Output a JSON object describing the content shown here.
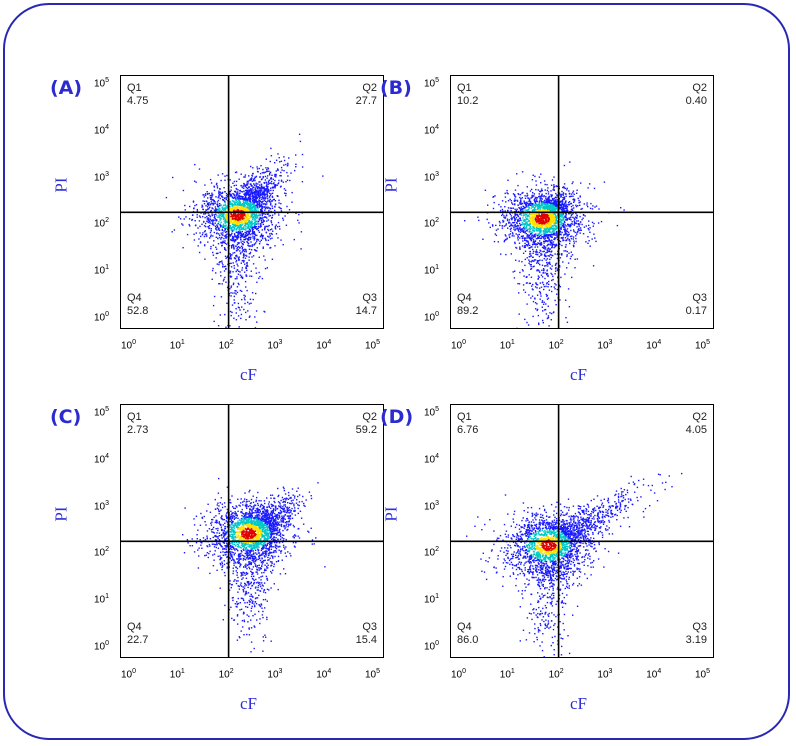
{
  "chart_data": [
    {
      "type": "scatter",
      "panel_label": "(A)",
      "xlabel": "cF",
      "ylabel": "PI",
      "scale": "log",
      "xlim": [
        1,
        100000
      ],
      "ylim": [
        1,
        100000
      ],
      "x_ticks": [
        "10^0",
        "10^1",
        "10^2",
        "10^3",
        "10^4",
        "10^5"
      ],
      "y_ticks": [
        "10^0",
        "10^1",
        "10^2",
        "10^3",
        "10^4",
        "10^5"
      ],
      "gate_x": 100,
      "gate_y": 200,
      "quadrants": {
        "Q1": "4.75",
        "Q2": "27.7",
        "Q3": "14.7",
        "Q4": "52.8"
      },
      "cluster": {
        "center_x": 150,
        "center_y": 180,
        "diagonal_to": [
          700,
          1000
        ]
      }
    },
    {
      "type": "scatter",
      "panel_label": "(B)",
      "xlabel": "cF",
      "ylabel": "PI",
      "scale": "log",
      "xlim": [
        1,
        100000
      ],
      "ylim": [
        1,
        100000
      ],
      "x_ticks": [
        "10^0",
        "10^1",
        "10^2",
        "10^3",
        "10^4",
        "10^5"
      ],
      "y_ticks": [
        "10^0",
        "10^1",
        "10^2",
        "10^3",
        "10^4",
        "10^5"
      ],
      "gate_x": 100,
      "gate_y": 200,
      "quadrants": {
        "Q1": "10.2",
        "Q2": "0.40",
        "Q3": "0.17",
        "Q4": "89.2"
      },
      "cluster": {
        "center_x": 45,
        "center_y": 150,
        "diagonal_to": [
          90,
          300
        ]
      }
    },
    {
      "type": "scatter",
      "panel_label": "(C)",
      "xlabel": "cF",
      "ylabel": "PI",
      "scale": "log",
      "xlim": [
        1,
        100000
      ],
      "ylim": [
        1,
        100000
      ],
      "x_ticks": [
        "10^0",
        "10^1",
        "10^2",
        "10^3",
        "10^4",
        "10^5"
      ],
      "y_ticks": [
        "10^0",
        "10^1",
        "10^2",
        "10^3",
        "10^4",
        "10^5"
      ],
      "gate_x": 100,
      "gate_y": 200,
      "quadrants": {
        "Q1": "2.73",
        "Q2": "59.2",
        "Q3": "15.4",
        "Q4": "22.7"
      },
      "cluster": {
        "center_x": 250,
        "center_y": 300,
        "diagonal_to": [
          1200,
          1000
        ]
      }
    },
    {
      "type": "scatter",
      "panel_label": "(D)",
      "xlabel": "cF",
      "ylabel": "PI",
      "scale": "log",
      "xlim": [
        1,
        100000
      ],
      "ylim": [
        1,
        100000
      ],
      "x_ticks": [
        "10^0",
        "10^1",
        "10^2",
        "10^3",
        "10^4",
        "10^5"
      ],
      "y_ticks": [
        "10^0",
        "10^1",
        "10^2",
        "10^3",
        "10^4",
        "10^5"
      ],
      "gate_x": 100,
      "gate_y": 200,
      "quadrants": {
        "Q1": "6.76",
        "Q2": "4.05",
        "Q3": "3.19",
        "Q4": "86.0"
      },
      "cluster": {
        "center_x": 60,
        "center_y": 170,
        "diagonal_to": [
          1500,
          1200
        ]
      }
    }
  ],
  "colors": {
    "frame": "#2828b4",
    "panel_label": "#2b2bd0",
    "axis_title": "#2f2fd8",
    "gate_line": "#000000",
    "density_low": "#1a1aff",
    "density_mid": "#00c8c8",
    "density_high": "#ffe000",
    "density_peak": "#e00000"
  }
}
